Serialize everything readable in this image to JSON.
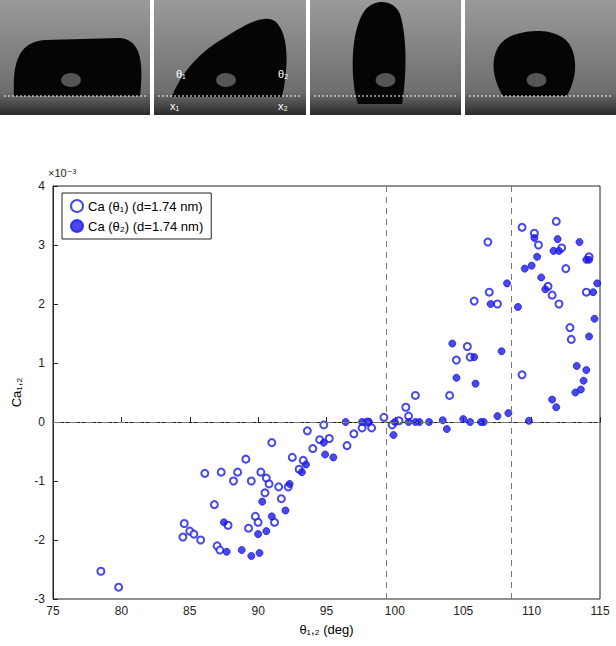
{
  "chart_data": {
    "type": "scatter",
    "photo_labels": [
      "θ₁",
      "θ₂",
      "x₁",
      "x₂"
    ],
    "x_label": "θ₁,₂ (deg)",
    "y_label": "Ca₁,₂",
    "y_multiplier": "×10⁻³",
    "xlim": [
      75,
      115
    ],
    "xticks": [
      75,
      80,
      85,
      90,
      95,
      100,
      105,
      110,
      115
    ],
    "ylim": [
      -3,
      4
    ],
    "yticks": [
      -3,
      -2,
      -1,
      0,
      1,
      2,
      3,
      4
    ],
    "vlines": [
      99.4,
      108.5
    ],
    "hlines": [
      0
    ],
    "legend": "upper left",
    "grid": false,
    "series": [
      {
        "name": "Ca (θ₁) (d=1.74 nm)",
        "color": "#1a1ae6",
        "marker": "open_circle",
        "x": [
          78.5,
          79.8,
          84.5,
          84.6,
          85,
          85.3,
          85.8,
          86.1,
          86.8,
          87,
          87.2,
          87.3,
          87.8,
          88.2,
          88.5,
          89.1,
          89.3,
          89.5,
          89.8,
          90,
          90.2,
          90.5,
          90.6,
          90.8,
          91,
          91.2,
          91.5,
          91.7,
          92.2,
          92.5,
          93,
          93.3,
          93.6,
          94,
          94.5,
          94.8,
          95.2,
          96.5,
          97,
          97.6,
          98,
          98.3,
          99.2,
          99.8,
          100.3,
          100.8,
          101,
          101.5,
          104,
          104.5,
          105.3,
          105.5,
          105.8,
          106.8,
          106.9,
          107.5,
          109.3,
          109.3,
          110.2,
          110.5,
          111.2,
          111.5,
          111.8,
          112,
          112.2,
          112.5,
          112.8,
          112.9,
          114,
          114.2
        ],
        "values": [
          -2.53,
          -2.8,
          -1.95,
          -1.72,
          -1.85,
          -1.9,
          -2.0,
          -0.87,
          -1.4,
          -2.1,
          -2.17,
          -0.85,
          -1.75,
          -1.0,
          -0.85,
          -0.63,
          -1.8,
          -1.0,
          -1.6,
          -1.7,
          -0.85,
          -1.2,
          -0.95,
          -1.05,
          -0.35,
          -1.7,
          -1.1,
          -1.3,
          -1.1,
          -0.6,
          -0.8,
          -0.65,
          -0.15,
          -0.45,
          -0.3,
          -0.05,
          -0.28,
          -0.4,
          -0.2,
          -0.1,
          0.0,
          -0.1,
          0.08,
          -0.05,
          0.02,
          0.25,
          0.1,
          0.45,
          0.45,
          1.05,
          1.28,
          1.1,
          2.05,
          3.05,
          2.2,
          2.0,
          0.8,
          3.3,
          3.2,
          3.0,
          2.3,
          2.15,
          3.4,
          2.0,
          2.95,
          2.6,
          1.6,
          1.4,
          2.2,
          2.8
        ]
      },
      {
        "name": "Ca (θ₂) (d=1.74 nm)",
        "color": "#1a1ae6",
        "marker": "circle",
        "x": [
          87.5,
          87.7,
          88.8,
          89.5,
          90,
          90.1,
          90.3,
          90.6,
          91,
          92,
          92.3,
          93.2,
          93.5,
          94.8,
          94.9,
          95.5,
          96.4,
          97.6,
          98.1,
          99.9,
          100,
          101,
          101.5,
          101.8,
          102.5,
          103.5,
          103.8,
          104.2,
          104.5,
          105,
          105.5,
          105.8,
          105.9,
          106.3,
          106.5,
          107,
          107.5,
          107.8,
          108.2,
          108.3,
          109,
          109.5,
          109.8,
          110,
          110.2,
          110.4,
          110.7,
          111,
          111.5,
          111.6,
          111.8,
          111.9,
          112,
          113.2,
          113.3,
          113.5,
          113.6,
          113.8,
          114,
          114,
          114.2,
          114.2,
          114.5,
          114.6,
          114.8
        ],
        "values": [
          -1.7,
          -2.2,
          -2.17,
          -2.27,
          -1.9,
          -2.22,
          -1.35,
          -1.85,
          -1.6,
          -1.5,
          -1.05,
          -0.85,
          -0.72,
          -0.35,
          -0.55,
          -0.6,
          0.0,
          0.0,
          0.0,
          -0.22,
          0.0,
          0.0,
          0.0,
          0.0,
          0.0,
          0.03,
          -0.12,
          1.33,
          0.75,
          0.05,
          0.0,
          1.1,
          0.65,
          0.0,
          0.0,
          2.0,
          0.1,
          1.2,
          2.35,
          0.15,
          1.95,
          2.6,
          0.02,
          2.65,
          3.12,
          2.8,
          2.45,
          2.25,
          0.38,
          2.9,
          0.25,
          3.1,
          2.9,
          0.5,
          0.95,
          3.05,
          0.55,
          0.7,
          2.75,
          0.88,
          1.45,
          2.75,
          2.2,
          1.75,
          2.35
        ]
      }
    ]
  }
}
